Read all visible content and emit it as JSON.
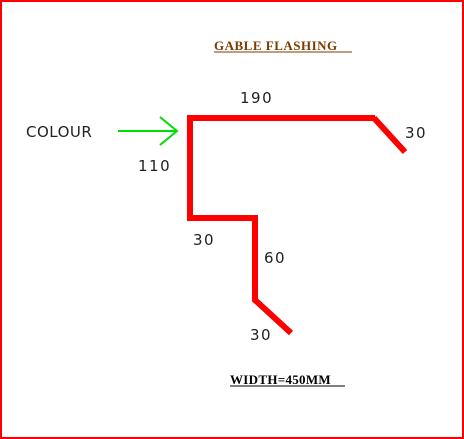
{
  "title": "GABLE FLASHING",
  "width_note": "WIDTH=450MM",
  "colour_label": "COLOUR",
  "dimensions": {
    "top": "190",
    "right_drip": "30",
    "left_vertical": "110",
    "step": "30",
    "lower_vertical": "60",
    "bottom_drip": "30"
  },
  "colors": {
    "profile": "#ff0000",
    "arrow": "#00dd00",
    "title": "#7a3b00",
    "border": "#ff0000"
  }
}
